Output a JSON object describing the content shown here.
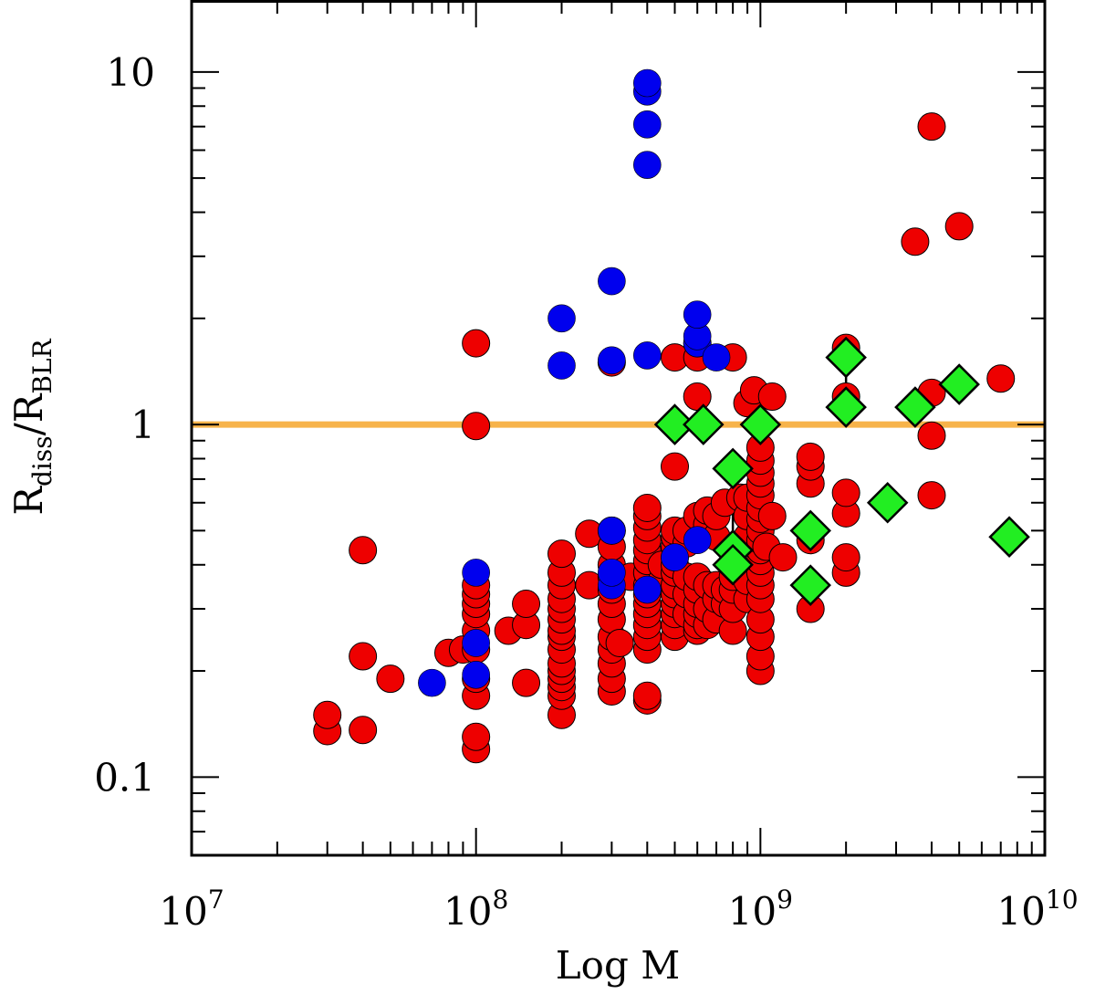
{
  "chart_data": {
    "type": "scatter",
    "xlabel": "Log M",
    "ylabel": "R_diss/R_BLR",
    "ylabel_parts": {
      "base1": "R",
      "sub1": "diss",
      "slash": "/",
      "base2": "R",
      "sub2": "BLR"
    },
    "x_scale": "log",
    "y_scale": "log",
    "xlim": [
      10000000,
      10000000000
    ],
    "ylim": [
      0.06,
      16
    ],
    "x_tick_labels": [
      {
        "value": 10000000,
        "base": "10",
        "exp": "7"
      },
      {
        "value": 100000000,
        "base": "10",
        "exp": "8"
      },
      {
        "value": 1000000000,
        "base": "10",
        "exp": "9"
      },
      {
        "value": 10000000000,
        "base": "10",
        "exp": "10"
      }
    ],
    "y_tick_labels": [
      {
        "value": 0.1,
        "label": "0.1"
      },
      {
        "value": 1,
        "label": "1"
      },
      {
        "value": 10,
        "label": "10"
      }
    ],
    "reference_line": {
      "y": 1,
      "color": "#f7b34a"
    },
    "colors": {
      "red": "#ee0000",
      "blue": "#0000ee",
      "green": "#22ee22"
    },
    "series": [
      {
        "name": "red",
        "marker": "circle",
        "points": [
          [
            30000000,
            0.135
          ],
          [
            30000000,
            0.15
          ],
          [
            40000000,
            0.136
          ],
          [
            40000000,
            0.22
          ],
          [
            40000000,
            0.44
          ],
          [
            50000000,
            0.19
          ],
          [
            80000000,
            0.225
          ],
          [
            90000000,
            0.23
          ],
          [
            100000000,
            0.12
          ],
          [
            100000000,
            0.13
          ],
          [
            100000000,
            0.17
          ],
          [
            100000000,
            0.19
          ],
          [
            100000000,
            0.23
          ],
          [
            100000000,
            0.26
          ],
          [
            100000000,
            0.29
          ],
          [
            100000000,
            0.31
          ],
          [
            100000000,
            0.33
          ],
          [
            100000000,
            0.35
          ],
          [
            100000000,
            0.99
          ],
          [
            100000000,
            1.7
          ],
          [
            130000000,
            0.26
          ],
          [
            150000000,
            0.185
          ],
          [
            150000000,
            0.27
          ],
          [
            150000000,
            0.31
          ],
          [
            200000000,
            0.15
          ],
          [
            200000000,
            0.17
          ],
          [
            200000000,
            0.18
          ],
          [
            200000000,
            0.19
          ],
          [
            200000000,
            0.2
          ],
          [
            200000000,
            0.21
          ],
          [
            200000000,
            0.23
          ],
          [
            200000000,
            0.25
          ],
          [
            200000000,
            0.26
          ],
          [
            200000000,
            0.28
          ],
          [
            200000000,
            0.3
          ],
          [
            200000000,
            0.32
          ],
          [
            200000000,
            0.35
          ],
          [
            200000000,
            0.38
          ],
          [
            200000000,
            0.43
          ],
          [
            250000000,
            0.35
          ],
          [
            250000000,
            0.49
          ],
          [
            300000000,
            0.175
          ],
          [
            300000000,
            0.19
          ],
          [
            300000000,
            0.21
          ],
          [
            300000000,
            0.23
          ],
          [
            300000000,
            0.25
          ],
          [
            300000000,
            0.28
          ],
          [
            300000000,
            0.31
          ],
          [
            300000000,
            0.34
          ],
          [
            300000000,
            0.37
          ],
          [
            300000000,
            0.4
          ],
          [
            300000000,
            0.45
          ],
          [
            300000000,
            0.5
          ],
          [
            300000000,
            1.5
          ],
          [
            320000000,
            0.24
          ],
          [
            350000000,
            0.37
          ],
          [
            400000000,
            0.165
          ],
          [
            400000000,
            0.17
          ],
          [
            400000000,
            0.23
          ],
          [
            400000000,
            0.25
          ],
          [
            400000000,
            0.27
          ],
          [
            400000000,
            0.29
          ],
          [
            400000000,
            0.31
          ],
          [
            400000000,
            0.33
          ],
          [
            400000000,
            0.35
          ],
          [
            400000000,
            0.38
          ],
          [
            400000000,
            0.41
          ],
          [
            400000000,
            0.44
          ],
          [
            400000000,
            0.47
          ],
          [
            400000000,
            0.51
          ],
          [
            400000000,
            0.55
          ],
          [
            400000000,
            0.58
          ],
          [
            450000000,
            0.36
          ],
          [
            450000000,
            0.4
          ],
          [
            500000000,
            0.25
          ],
          [
            500000000,
            0.27
          ],
          [
            500000000,
            0.29
          ],
          [
            500000000,
            0.31
          ],
          [
            500000000,
            0.33
          ],
          [
            500000000,
            0.35
          ],
          [
            500000000,
            0.38
          ],
          [
            500000000,
            0.4
          ],
          [
            500000000,
            0.42
          ],
          [
            500000000,
            0.45
          ],
          [
            500000000,
            0.48
          ],
          [
            500000000,
            0.5
          ],
          [
            500000000,
            0.76
          ],
          [
            500000000,
            1.55
          ],
          [
            550000000,
            0.29
          ],
          [
            550000000,
            0.33
          ],
          [
            550000000,
            0.37
          ],
          [
            550000000,
            0.46
          ],
          [
            550000000,
            0.5
          ],
          [
            600000000,
            0.26
          ],
          [
            600000000,
            0.27
          ],
          [
            600000000,
            0.29
          ],
          [
            600000000,
            0.31
          ],
          [
            600000000,
            0.34
          ],
          [
            600000000,
            0.37
          ],
          [
            600000000,
            0.55
          ],
          [
            600000000,
            1.2
          ],
          [
            600000000,
            1.55
          ],
          [
            600000000,
            1.7
          ],
          [
            650000000,
            0.27
          ],
          [
            650000000,
            0.3
          ],
          [
            650000000,
            0.35
          ],
          [
            650000000,
            0.52
          ],
          [
            650000000,
            0.57
          ],
          [
            700000000,
            0.28
          ],
          [
            700000000,
            0.32
          ],
          [
            700000000,
            0.35
          ],
          [
            700000000,
            0.48
          ],
          [
            700000000,
            0.55
          ],
          [
            750000000,
            0.31
          ],
          [
            750000000,
            0.34
          ],
          [
            750000000,
            0.6
          ],
          [
            800000000,
            0.26
          ],
          [
            800000000,
            0.3
          ],
          [
            800000000,
            0.34
          ],
          [
            800000000,
            0.37
          ],
          [
            800000000,
            1.55
          ],
          [
            850000000,
            0.62
          ],
          [
            900000000,
            0.32
          ],
          [
            900000000,
            0.36
          ],
          [
            900000000,
            0.48
          ],
          [
            900000000,
            0.55
          ],
          [
            900000000,
            0.62
          ],
          [
            900000000,
            1.15
          ],
          [
            950000000,
            1.25
          ],
          [
            1000000000,
            0.2
          ],
          [
            1000000000,
            0.22
          ],
          [
            1000000000,
            0.25
          ],
          [
            1000000000,
            0.28
          ],
          [
            1000000000,
            0.32
          ],
          [
            1000000000,
            0.35
          ],
          [
            1000000000,
            0.38
          ],
          [
            1000000000,
            0.41
          ],
          [
            1000000000,
            0.44
          ],
          [
            1000000000,
            0.47
          ],
          [
            1000000000,
            0.5
          ],
          [
            1000000000,
            0.54
          ],
          [
            1000000000,
            0.58
          ],
          [
            1000000000,
            0.63
          ],
          [
            1000000000,
            0.68
          ],
          [
            1000000000,
            0.73
          ],
          [
            1000000000,
            0.79
          ],
          [
            1000000000,
            0.86
          ],
          [
            1050000000,
            0.45
          ],
          [
            1100000000,
            0.55
          ],
          [
            1100000000,
            1.2
          ],
          [
            1200000000,
            0.42
          ],
          [
            1500000000,
            0.3
          ],
          [
            1500000000,
            0.47
          ],
          [
            1500000000,
            0.68
          ],
          [
            1500000000,
            0.76
          ],
          [
            1500000000,
            0.81
          ],
          [
            2000000000,
            0.38
          ],
          [
            2000000000,
            0.42
          ],
          [
            2000000000,
            0.56
          ],
          [
            2000000000,
            0.64
          ],
          [
            2000000000,
            1.2
          ],
          [
            2000000000,
            1.65
          ],
          [
            3500000000,
            3.3
          ],
          [
            4000000000,
            0.63
          ],
          [
            4000000000,
            0.93
          ],
          [
            4000000000,
            1.23
          ],
          [
            4000000000,
            7.0
          ],
          [
            5000000000,
            3.65
          ],
          [
            7000000000,
            1.35
          ]
        ]
      },
      {
        "name": "blue",
        "marker": "circle",
        "points": [
          [
            70000000,
            0.185
          ],
          [
            100000000,
            0.195
          ],
          [
            100000000,
            0.24
          ],
          [
            100000000,
            0.38
          ],
          [
            200000000,
            1.47
          ],
          [
            200000000,
            2.0
          ],
          [
            300000000,
            0.35
          ],
          [
            300000000,
            0.38
          ],
          [
            300000000,
            0.5
          ],
          [
            300000000,
            1.52
          ],
          [
            300000000,
            2.55
          ],
          [
            400000000,
            0.34
          ],
          [
            400000000,
            1.57
          ],
          [
            400000000,
            5.45
          ],
          [
            400000000,
            7.1
          ],
          [
            400000000,
            8.8
          ],
          [
            400000000,
            9.3
          ],
          [
            500000000,
            0.42
          ],
          [
            600000000,
            0.47
          ],
          [
            600000000,
            1.7
          ],
          [
            600000000,
            1.78
          ],
          [
            600000000,
            2.05
          ],
          [
            700000000,
            1.55
          ]
        ]
      },
      {
        "name": "green",
        "marker": "diamond",
        "points": [
          [
            500000000,
            1.0
          ],
          [
            630000000,
            1.0
          ],
          [
            800000000,
            0.75
          ],
          [
            800000000,
            0.44
          ],
          [
            800000000,
            0.4
          ],
          [
            1000000000,
            1.0
          ],
          [
            1500000000,
            0.35
          ],
          [
            1500000000,
            0.5
          ],
          [
            2000000000,
            1.55
          ],
          [
            2000000000,
            1.12
          ],
          [
            2800000000,
            0.6
          ],
          [
            3500000000,
            1.12
          ],
          [
            5000000000,
            1.3
          ],
          [
            7500000000,
            0.48
          ]
        ]
      }
    ],
    "error_bars": [
      {
        "x": 800000000,
        "y_low": 0.44,
        "y_high": 0.78
      },
      {
        "x": 2000000000,
        "y_low": 1.12,
        "y_high": 1.55
      }
    ]
  }
}
